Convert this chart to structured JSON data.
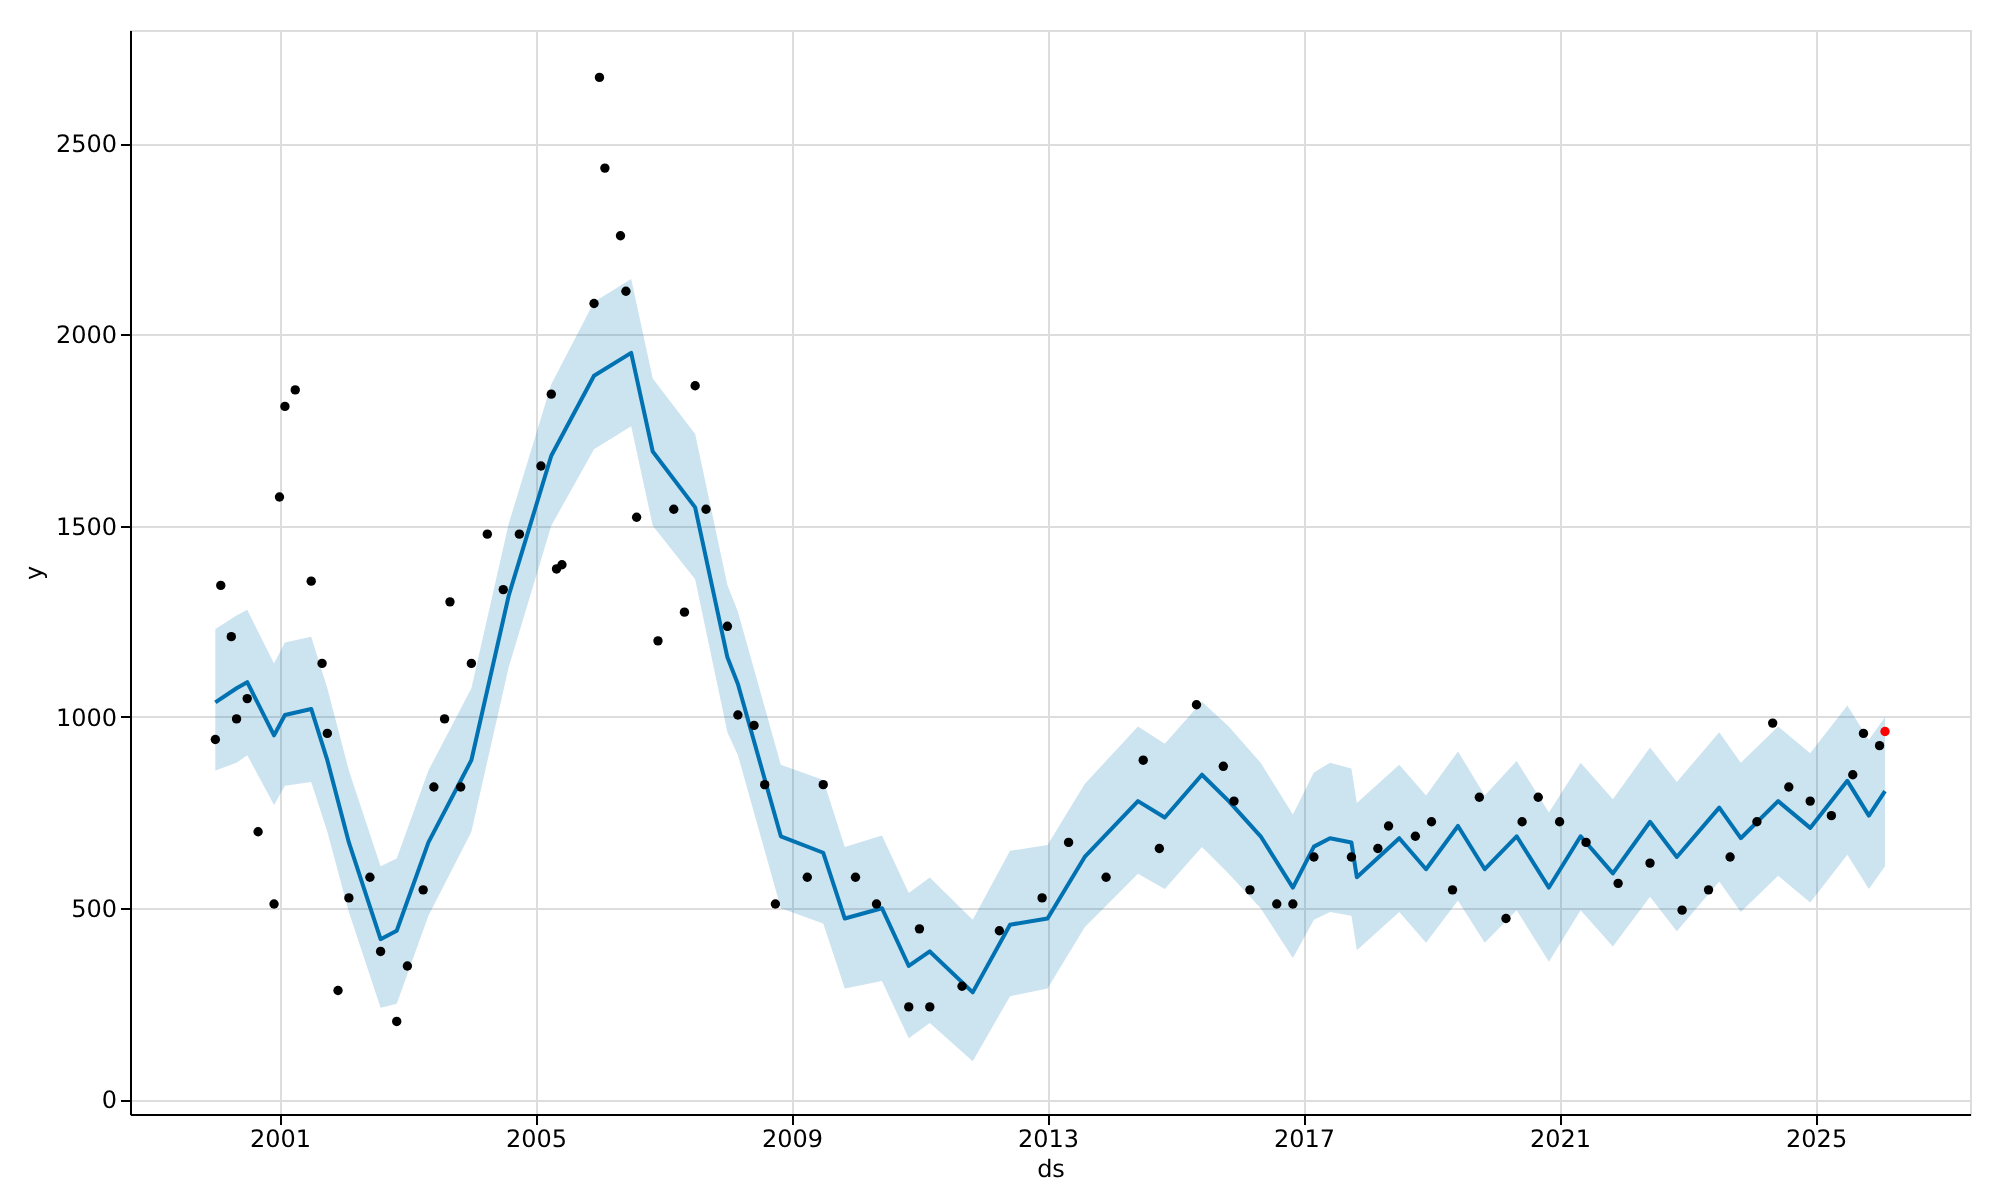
{
  "chart_data": {
    "type": "scatter",
    "xlabel": "ds",
    "ylabel": "y",
    "xlim": [
      "1998-09",
      "2027-06"
    ],
    "ylim": [
      -38,
      2796
    ],
    "xticks": [
      "2001",
      "2005",
      "2009",
      "2013",
      "2017",
      "2021",
      "2025"
    ],
    "yticks": [
      0,
      500,
      1000,
      1500,
      2000,
      2500
    ],
    "grid": true,
    "marker": "circle",
    "series": [
      {
        "type": "line",
        "color": "#0072b2",
        "line_style": "solid",
        "marker": "none",
        "x": [
          "2000-01",
          "2000-05",
          "2000-07",
          "2000-12",
          "2001-02",
          "2001-07",
          "2001-10",
          "2002-02",
          "2002-08",
          "2002-11",
          "2003-05",
          "2004-01",
          "2004-08",
          "2005-04",
          "2005-12",
          "2006-07",
          "2006-11",
          "2007-07",
          "2008-01",
          "2008-03",
          "2008-11",
          "2009-07",
          "2009-11",
          "2010-06",
          "2010-11",
          "2011-03",
          "2011-11",
          "2012-06",
          "2013-01",
          "2013-08",
          "2014-06",
          "2014-11",
          "2015-06",
          "2015-11",
          "2016-05",
          "2016-11",
          "2017-03",
          "2017-06",
          "2017-10",
          "2017-11",
          "2018-07",
          "2018-12",
          "2019-06",
          "2019-11",
          "2020-05",
          "2020-11",
          "2021-05",
          "2021-11",
          "2022-06",
          "2022-11",
          "2023-07",
          "2023-11",
          "2024-06",
          "2024-12",
          "2025-07",
          "2025-11",
          "2026-02"
        ],
        "values": [
          1038,
          1075,
          1091,
          952,
          1005,
          1021,
          887,
          672,
          419,
          441,
          672,
          887,
          1317,
          1683,
          1892,
          1952,
          1694,
          1548,
          1156,
          1086,
          688,
          645,
          473,
          500,
          349,
          387,
          280,
          457,
          473,
          634,
          780,
          737,
          849,
          780,
          688,
          554,
          661,
          683,
          672,
          581,
          683,
          602,
          715,
          602,
          688,
          554,
          688,
          591,
          726,
          634,
          763,
          683,
          780,
          710,
          833,
          742,
          806
        ],
        "lower": [
          860,
          880,
          900,
          770,
          820,
          830,
          700,
          490,
          240,
          250,
          480,
          700,
          1130,
          1500,
          1700,
          1760,
          1500,
          1360,
          960,
          900,
          500,
          460,
          290,
          310,
          160,
          200,
          100,
          270,
          290,
          450,
          590,
          550,
          660,
          590,
          500,
          370,
          470,
          490,
          480,
          390,
          490,
          410,
          520,
          410,
          495,
          360,
          495,
          400,
          530,
          440,
          570,
          490,
          585,
          515,
          640,
          550,
          610
        ],
        "upper": [
          1230,
          1265,
          1280,
          1140,
          1195,
          1210,
          1075,
          860,
          610,
          630,
          860,
          1075,
          1505,
          1870,
          2085,
          2145,
          1885,
          1740,
          1345,
          1275,
          875,
          835,
          660,
          690,
          540,
          580,
          470,
          650,
          665,
          825,
          975,
          930,
          1040,
          975,
          880,
          745,
          855,
          880,
          865,
          775,
          875,
          795,
          910,
          795,
          885,
          750,
          880,
          785,
          920,
          830,
          960,
          880,
          975,
          905,
          1030,
          940,
          1000
        ]
      },
      {
        "color": "#000000",
        "x": [
          "2000-01",
          "2000-02",
          "2000-04",
          "2000-05",
          "2000-07",
          "2000-09",
          "2000-12",
          "2001-01",
          "2001-02",
          "2001-04",
          "2001-07",
          "2001-09",
          "2001-10",
          "2001-12",
          "2002-02",
          "2002-06",
          "2002-08",
          "2002-11",
          "2003-01",
          "2003-04",
          "2003-06",
          "2003-08",
          "2003-09",
          "2003-11",
          "2004-01",
          "2004-04",
          "2004-07",
          "2004-10",
          "2005-02",
          "2005-04",
          "2005-05",
          "2005-06",
          "2005-12",
          "2006-01",
          "2006-02",
          "2006-05",
          "2006-06",
          "2006-08",
          "2006-12",
          "2007-03",
          "2007-05",
          "2007-07",
          "2007-09",
          "2008-01",
          "2008-03",
          "2008-06",
          "2008-08",
          "2008-10",
          "2009-04",
          "2009-07",
          "2010-01",
          "2010-05",
          "2010-11",
          "2011-01",
          "2011-03",
          "2011-09",
          "2012-04",
          "2012-12",
          "2013-05",
          "2013-12",
          "2014-07",
          "2014-10",
          "2015-05",
          "2015-10",
          "2015-12",
          "2016-03",
          "2016-08",
          "2016-11",
          "2017-03",
          "2017-10",
          "2018-03",
          "2018-05",
          "2018-10",
          "2019-01",
          "2019-05",
          "2019-10",
          "2020-03",
          "2020-06",
          "2020-09",
          "2021-01",
          "2021-06",
          "2021-12",
          "2022-06",
          "2022-12",
          "2023-05",
          "2023-09",
          "2024-02",
          "2024-05",
          "2024-08",
          "2024-12",
          "2025-04",
          "2025-08",
          "2025-10",
          "2026-01"
        ],
        "values": [
          941,
          1344,
          1210,
          995,
          1048,
          700,
          511,
          1575,
          1812,
          1855,
          1355,
          1140,
          957,
          285,
          527,
          581,
          387,
          204,
          349,
          548,
          817,
          995,
          1301,
          817,
          1140,
          1478,
          1333,
          1478,
          1656,
          1844,
          1387,
          1398,
          2081,
          2672,
          2435,
          2258,
          2113,
          1522,
          1199,
          1543,
          1274,
          1866,
          1543,
          1237,
          1005,
          978,
          823,
          511,
          581,
          823,
          581,
          511,
          242,
          446,
          242,
          296,
          441,
          527,
          672,
          581,
          887,
          656,
          1032,
          871,
          780,
          548,
          511,
          511,
          634,
          634,
          656,
          715,
          688,
          726,
          548,
          790,
          473,
          726,
          790,
          726,
          672,
          565,
          618,
          495,
          548,
          634,
          726,
          984,
          817,
          780,
          742,
          849,
          957,
          925
        ]
      },
      {
        "color": "#ff0000",
        "x": [
          "2026-02"
        ],
        "values": [
          962
        ]
      }
    ]
  }
}
